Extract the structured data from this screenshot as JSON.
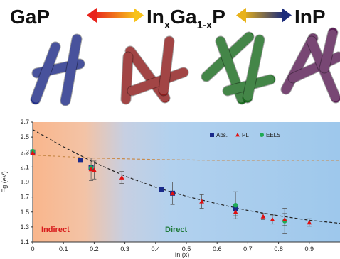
{
  "header": {
    "left": "GaP",
    "mid_a": "In",
    "mid_sub1": "x",
    "mid_b": "Ga",
    "mid_sub2": "1-x",
    "mid_c": "P",
    "right": "InP"
  },
  "colors": {
    "gap_wire": "#1f2c86",
    "ingap_red_wire": "#8e1c1c",
    "ingap_green_wire": "#1b6b20",
    "inp_wire": "#5a1e55",
    "indirect_bg": "#f9b68c",
    "direct_bg": "#a9cdec",
    "abs": "#1a2a8a",
    "pl": "#e01010",
    "eels": "#1faa55",
    "direct_fit": "#222222",
    "indirect_fit": "#c98a4a"
  },
  "chart_data": {
    "type": "scatter",
    "xlabel": "In (x)",
    "ylabel": "Eg (eV)",
    "xlim": [
      0,
      1.0
    ],
    "ylim": [
      1.1,
      2.7
    ],
    "xticks": [
      0,
      0.1,
      0.2,
      0.3,
      0.4,
      0.5,
      0.6,
      0.7,
      0.8,
      0.9
    ],
    "yticks": [
      1.1,
      1.3,
      1.5,
      1.7,
      1.9,
      2.1,
      2.3,
      2.5,
      2.7
    ],
    "legend_position": "top-right",
    "region_labels": {
      "indirect": "Indirect",
      "direct": "Direct"
    },
    "series": [
      {
        "name": "Abs.",
        "marker": "square",
        "x": [
          0.0,
          0.155,
          0.19,
          0.42,
          0.455,
          0.66
        ],
        "y": [
          2.3,
          2.19,
          2.09,
          1.8,
          1.75,
          1.54
        ]
      },
      {
        "name": "PL",
        "marker": "triangle",
        "x": [
          0.0,
          0.19,
          0.2,
          0.29,
          0.455,
          0.55,
          0.66,
          0.75,
          0.78,
          0.82,
          0.9
        ],
        "y": [
          2.29,
          2.07,
          2.06,
          1.96,
          1.75,
          1.64,
          1.5,
          1.44,
          1.4,
          1.4,
          1.36
        ],
        "err": [
          0,
          0.15,
          0.12,
          0.08,
          0.15,
          0.09,
          0.05,
          0.04,
          0.06,
          0.08,
          0.05
        ]
      },
      {
        "name": "EELS",
        "marker": "circle",
        "x": [
          0.0,
          0.19,
          0.66,
          0.82
        ],
        "y": [
          2.31,
          2.09,
          1.59,
          1.38
        ],
        "err": [
          0,
          0,
          0.18,
          0.17
        ]
      }
    ],
    "fits": [
      {
        "label": "direct",
        "x": [
          0,
          0.1,
          0.2,
          0.3,
          0.4,
          0.5,
          0.6,
          0.7,
          0.8,
          0.9,
          1.0
        ],
        "y": [
          2.6,
          2.37,
          2.16,
          1.98,
          1.83,
          1.71,
          1.61,
          1.52,
          1.45,
          1.39,
          1.35
        ]
      },
      {
        "label": "indirect",
        "x": [
          0,
          0.2,
          0.4,
          0.6,
          0.8,
          1.0
        ],
        "y": [
          2.26,
          2.22,
          2.2,
          2.19,
          2.19,
          2.19
        ]
      }
    ]
  }
}
